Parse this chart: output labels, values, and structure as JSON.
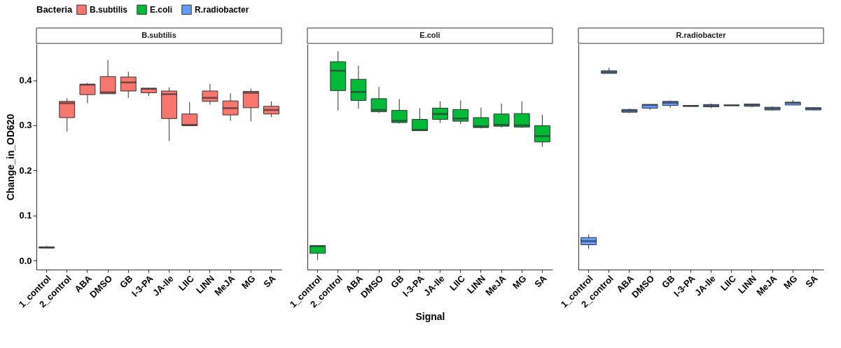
{
  "chart_data": [
    {
      "type": "box",
      "title": "B.subtilis",
      "ylabel": "Change_in_OD620",
      "legend_title": "Bacteria",
      "legend": "top",
      "grid": false,
      "ylim": [
        -0.02,
        0.48
      ],
      "yticks": [
        {
          "value": 0,
          "label": "0.0"
        },
        0.1,
        0.2,
        0.3,
        0.4
      ],
      "categories": [
        "1_control",
        "2_control",
        "ABA",
        "DMSO",
        "GB",
        "I-3-PA",
        "JA-Ile",
        "LIIC",
        "LINN",
        "MeJA",
        "MG",
        "SA"
      ],
      "series": [
        {
          "name": "B.subtilis",
          "color": "#f8766d",
          "boxes": [
            {
              "low": 0.027,
              "q1": 0.028,
              "median": 0.029,
              "q3": 0.03,
              "high": 0.032
            },
            {
              "low": 0.286,
              "q1": 0.317,
              "median": 0.349,
              "q3": 0.353,
              "high": 0.36
            },
            {
              "low": 0.349,
              "q1": 0.368,
              "median": 0.39,
              "q3": 0.391,
              "high": 0.394
            },
            {
              "low": 0.37,
              "q1": 0.37,
              "median": 0.373,
              "q3": 0.408,
              "high": 0.445
            },
            {
              "low": 0.361,
              "q1": 0.376,
              "median": 0.395,
              "q3": 0.407,
              "high": 0.419
            },
            {
              "low": 0.365,
              "q1": 0.372,
              "median": 0.381,
              "q3": 0.382,
              "high": 0.383
            },
            {
              "low": 0.265,
              "q1": 0.315,
              "median": 0.369,
              "q3": 0.376,
              "high": 0.384
            },
            {
              "low": 0.298,
              "q1": 0.299,
              "median": 0.301,
              "q3": 0.325,
              "high": 0.351
            },
            {
              "low": 0.346,
              "q1": 0.353,
              "median": 0.361,
              "q3": 0.376,
              "high": 0.392
            },
            {
              "low": 0.31,
              "q1": 0.323,
              "median": 0.338,
              "q3": 0.354,
              "high": 0.371
            },
            {
              "low": 0.309,
              "q1": 0.339,
              "median": 0.372,
              "q3": 0.375,
              "high": 0.381
            },
            {
              "low": 0.318,
              "q1": 0.325,
              "median": 0.334,
              "q3": 0.342,
              "high": 0.353
            }
          ]
        }
      ]
    },
    {
      "type": "box",
      "title": "E.coli",
      "xlabel": "Signal",
      "grid": false,
      "tick_labels": "x",
      "ylim": [
        -0.02,
        0.48
      ],
      "categories": [
        "1_control",
        "2_control",
        "ABA",
        "DMSO",
        "GB",
        "I-3-PA",
        "JA-Ile",
        "LIIC",
        "LINN",
        "MeJA",
        "MG",
        "SA"
      ],
      "series": [
        {
          "name": "E.coli",
          "color": "#00ba38",
          "boxes": [
            {
              "low": 0.001,
              "q1": 0.016,
              "median": 0.032,
              "q3": 0.033,
              "high": 0.033
            },
            {
              "low": 0.333,
              "q1": 0.377,
              "median": 0.421,
              "q3": 0.441,
              "high": 0.464
            },
            {
              "low": 0.337,
              "q1": 0.355,
              "median": 0.374,
              "q3": 0.402,
              "high": 0.432
            },
            {
              "low": 0.327,
              "q1": 0.33,
              "median": 0.334,
              "q3": 0.359,
              "high": 0.385
            },
            {
              "low": 0.304,
              "q1": 0.306,
              "median": 0.31,
              "q3": 0.333,
              "high": 0.358
            },
            {
              "low": 0.288,
              "q1": 0.288,
              "median": 0.29,
              "q3": 0.313,
              "high": 0.338
            },
            {
              "low": 0.305,
              "q1": 0.313,
              "median": 0.325,
              "q3": 0.338,
              "high": 0.353
            },
            {
              "low": 0.303,
              "q1": 0.309,
              "median": 0.315,
              "q3": 0.335,
              "high": 0.355
            },
            {
              "low": 0.293,
              "q1": 0.295,
              "median": 0.298,
              "q3": 0.317,
              "high": 0.339
            },
            {
              "low": 0.295,
              "q1": 0.298,
              "median": 0.301,
              "q3": 0.325,
              "high": 0.348
            },
            {
              "low": 0.294,
              "q1": 0.296,
              "median": 0.3,
              "q3": 0.326,
              "high": 0.353
            },
            {
              "low": 0.252,
              "q1": 0.263,
              "median": 0.276,
              "q3": 0.299,
              "high": 0.323
            }
          ]
        }
      ]
    },
    {
      "type": "box",
      "title": "R.radiobacter",
      "grid": false,
      "tick_labels": "x",
      "ylim": [
        -0.02,
        0.48
      ],
      "categories": [
        "1_control",
        "2_control",
        "ABA",
        "DMSO",
        "GB",
        "I-3-PA",
        "JA-Ile",
        "LIIC",
        "LINN",
        "MeJA",
        "MG",
        "SA"
      ],
      "series": [
        {
          "name": "R.radiobacter",
          "color": "#619cff",
          "boxes": [
            {
              "low": 0.026,
              "q1": 0.035,
              "median": 0.043,
              "q3": 0.051,
              "high": 0.058
            },
            {
              "low": 0.415,
              "q1": 0.415,
              "median": 0.418,
              "q3": 0.421,
              "high": 0.428
            },
            {
              "low": 0.327,
              "q1": 0.329,
              "median": 0.332,
              "q3": 0.335,
              "high": 0.337
            },
            {
              "low": 0.334,
              "q1": 0.338,
              "median": 0.345,
              "q3": 0.346,
              "high": 0.347
            },
            {
              "low": 0.339,
              "q1": 0.344,
              "median": 0.35,
              "q3": 0.353,
              "high": 0.355
            },
            {
              "low": 0.342,
              "q1": 0.342,
              "median": 0.343,
              "q3": 0.344,
              "high": 0.345
            },
            {
              "low": 0.338,
              "q1": 0.341,
              "median": 0.344,
              "q3": 0.346,
              "high": 0.348
            },
            {
              "low": 0.343,
              "q1": 0.344,
              "median": 0.344,
              "q3": 0.345,
              "high": 0.345
            },
            {
              "low": 0.34,
              "q1": 0.342,
              "median": 0.345,
              "q3": 0.347,
              "high": 0.348
            },
            {
              "low": 0.333,
              "q1": 0.334,
              "median": 0.337,
              "q3": 0.34,
              "high": 0.342
            },
            {
              "low": 0.345,
              "q1": 0.345,
              "median": 0.35,
              "q3": 0.351,
              "high": 0.356
            },
            {
              "low": 0.333,
              "q1": 0.334,
              "median": 0.337,
              "q3": 0.339,
              "high": 0.34
            }
          ]
        }
      ]
    }
  ]
}
